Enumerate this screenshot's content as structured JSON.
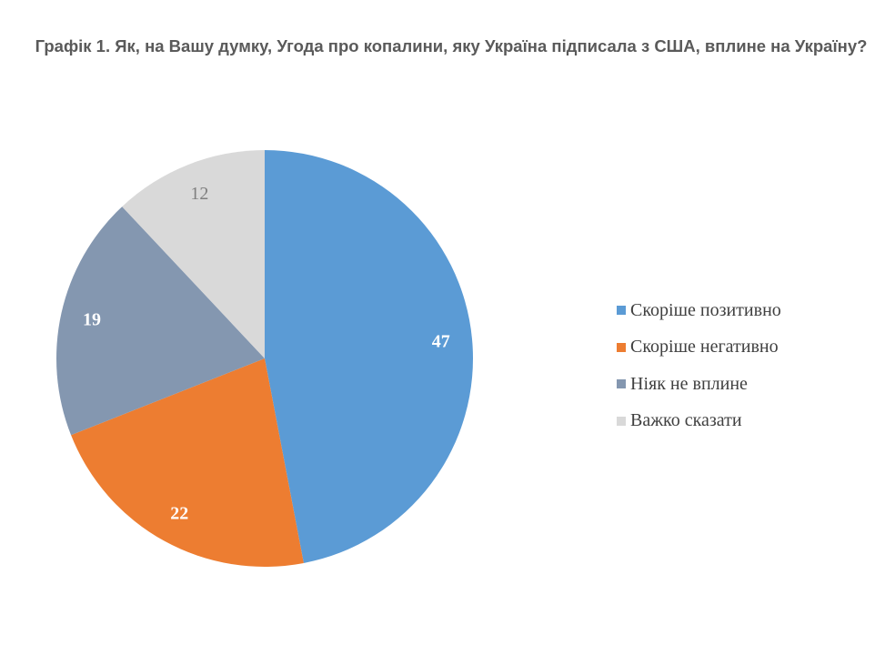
{
  "chart_data": {
    "type": "pie",
    "title": "Графік 1. Як, на Вашу думку, Угода про копалини, яку Україна підписала з США, вплине на Україну?",
    "categories": [
      "Скоріше позитивно",
      "Скоріше негативно",
      "Ніяк не вплине",
      "Важко сказати"
    ],
    "values": [
      47,
      22,
      19,
      12
    ],
    "colors": [
      "#5B9BD5",
      "#ED7D31",
      "#8497B0",
      "#D9D9D9"
    ],
    "label_colors": [
      "#ffffff",
      "#ffffff",
      "#ffffff",
      "#7f7f7f"
    ],
    "label_bold": [
      true,
      true,
      true,
      false
    ],
    "start": "12 o'clock",
    "direction": "clockwise",
    "legend_position": "right"
  }
}
